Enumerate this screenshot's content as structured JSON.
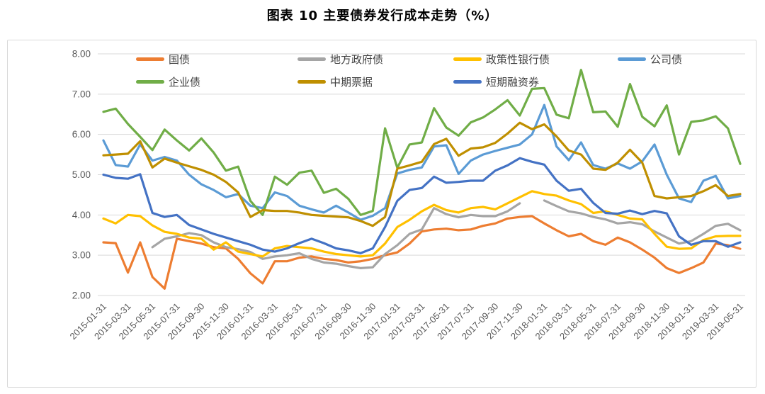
{
  "title": "图表 10 主要债券发行成本走势（%）",
  "colors": {
    "gridline": "#d9d9d9",
    "frame_border": "#d9d9d9",
    "axis_text": "#595959",
    "legend_text": "#404040",
    "title_text": "#000000"
  },
  "chart_data": {
    "type": "line",
    "title": "图表 10 主要债券发行成本走势（%）",
    "xlabel": "",
    "ylabel": "",
    "ylim": [
      2,
      8
    ],
    "y_tick_step": 1,
    "y_tick_decimals": 2,
    "x_tick_every": 2,
    "grid": true,
    "legend_position": "top-inside",
    "x": [
      "2015-01-31",
      "2015-02-28",
      "2015-03-31",
      "2015-04-30",
      "2015-05-31",
      "2015-06-30",
      "2015-07-31",
      "2015-08-31",
      "2015-09-30",
      "2015-10-31",
      "2015-11-30",
      "2015-12-31",
      "2016-01-31",
      "2016-02-29",
      "2016-03-31",
      "2016-04-30",
      "2016-05-31",
      "2016-06-30",
      "2016-07-31",
      "2016-08-31",
      "2016-09-30",
      "2016-10-31",
      "2016-11-30",
      "2016-12-31",
      "2017-01-31",
      "2017-02-28",
      "2017-03-31",
      "2017-04-30",
      "2017-05-31",
      "2017-06-30",
      "2017-07-31",
      "2017-08-31",
      "2017-09-30",
      "2017-10-31",
      "2017-11-30",
      "2017-12-31",
      "2018-01-31",
      "2018-02-28",
      "2018-03-31",
      "2018-04-30",
      "2018-05-31",
      "2018-06-30",
      "2018-07-31",
      "2018-08-31",
      "2018-09-30",
      "2018-10-31",
      "2018-11-30",
      "2018-12-31",
      "2019-01-31",
      "2019-02-28",
      "2019-03-31",
      "2019-04-30",
      "2019-05-31"
    ],
    "series": [
      {
        "id": "treasury-bonds",
        "name": "国债",
        "color": "#ED7D31",
        "values": [
          3.32,
          3.3,
          2.57,
          3.32,
          2.46,
          2.17,
          3.41,
          3.35,
          3.29,
          3.2,
          3.17,
          2.91,
          2.55,
          2.3,
          2.85,
          2.85,
          2.94,
          2.97,
          2.91,
          2.88,
          2.82,
          2.85,
          2.91,
          3.0,
          3.07,
          3.29,
          3.59,
          3.64,
          3.66,
          3.62,
          3.64,
          3.73,
          3.79,
          3.91,
          3.95,
          3.97,
          3.79,
          3.62,
          3.47,
          3.53,
          3.35,
          3.26,
          3.44,
          3.32,
          3.14,
          2.94,
          2.68,
          2.56,
          2.68,
          2.82,
          3.29,
          3.25,
          3.16
        ]
      },
      {
        "id": "local-government-bonds",
        "name": "地方政府债",
        "color": "#A5A5A5",
        "values": [
          null,
          null,
          null,
          null,
          3.2,
          3.41,
          3.47,
          3.55,
          3.5,
          3.32,
          3.2,
          3.15,
          3.08,
          2.91,
          2.97,
          3.0,
          3.05,
          2.91,
          2.82,
          2.79,
          2.73,
          2.68,
          2.7,
          3.03,
          3.25,
          3.53,
          3.64,
          4.17,
          4.02,
          3.94,
          4.0,
          3.97,
          3.97,
          4.09,
          4.29,
          null,
          4.36,
          4.22,
          4.09,
          4.04,
          3.95,
          3.89,
          3.79,
          3.82,
          3.77,
          3.59,
          3.44,
          3.29,
          3.35,
          3.53,
          3.73,
          3.78,
          3.62
        ]
      },
      {
        "id": "policy-bank-bonds",
        "name": "政策性银行债",
        "color": "#FFC000",
        "values": [
          3.91,
          3.79,
          4.0,
          3.97,
          3.74,
          3.58,
          3.53,
          3.44,
          3.41,
          3.14,
          3.32,
          3.09,
          3.03,
          2.97,
          3.17,
          3.23,
          3.2,
          3.17,
          3.09,
          3.03,
          3.0,
          2.97,
          3.0,
          3.29,
          3.7,
          3.88,
          4.09,
          4.25,
          4.12,
          4.06,
          4.17,
          4.2,
          4.14,
          4.29,
          4.44,
          4.59,
          4.52,
          4.48,
          4.36,
          4.27,
          4.05,
          4.09,
          4.0,
          3.91,
          3.89,
          3.53,
          3.21,
          3.16,
          3.17,
          3.38,
          3.47,
          3.48,
          3.48
        ]
      },
      {
        "id": "corporate-bonds",
        "name": "公司债",
        "color": "#5B9BD5",
        "values": [
          5.85,
          5.24,
          5.2,
          5.75,
          5.35,
          5.44,
          5.35,
          5.0,
          4.76,
          4.62,
          4.44,
          4.52,
          4.23,
          4.17,
          4.56,
          4.47,
          4.23,
          4.14,
          4.06,
          4.23,
          4.06,
          3.88,
          3.98,
          4.17,
          5.03,
          5.12,
          5.18,
          5.7,
          5.73,
          5.02,
          5.35,
          5.5,
          5.59,
          5.67,
          5.75,
          6.0,
          6.73,
          5.7,
          5.36,
          5.8,
          5.24,
          5.15,
          5.28,
          5.15,
          5.33,
          5.75,
          5.0,
          4.41,
          4.32,
          4.85,
          4.97,
          4.41,
          4.47
        ]
      },
      {
        "id": "enterprise-bonds",
        "name": "企业债",
        "color": "#70AD47",
        "values": [
          6.56,
          6.64,
          6.26,
          5.94,
          5.61,
          6.12,
          5.85,
          5.6,
          5.9,
          5.55,
          5.1,
          5.2,
          4.35,
          4.0,
          4.95,
          4.75,
          5.05,
          5.1,
          4.55,
          4.65,
          4.4,
          4.0,
          4.1,
          6.15,
          5.17,
          5.75,
          5.8,
          6.65,
          6.17,
          5.97,
          6.3,
          6.42,
          6.62,
          6.85,
          6.47,
          7.13,
          7.15,
          6.49,
          6.4,
          7.6,
          6.55,
          6.57,
          6.19,
          7.25,
          6.44,
          6.2,
          6.72,
          5.5,
          6.31,
          6.35,
          6.45,
          6.15,
          5.27
        ]
      },
      {
        "id": "medium-term-notes",
        "name": "中期票据",
        "color": "#BF8F00",
        "values": [
          5.48,
          5.5,
          5.52,
          5.83,
          5.18,
          5.4,
          5.3,
          5.21,
          5.12,
          5.0,
          4.82,
          4.56,
          3.95,
          4.12,
          4.1,
          4.1,
          4.06,
          4.0,
          3.98,
          3.96,
          3.94,
          3.85,
          3.73,
          3.95,
          5.15,
          5.23,
          5.32,
          5.76,
          5.89,
          5.47,
          5.65,
          5.68,
          5.79,
          6.02,
          6.29,
          6.13,
          6.25,
          5.95,
          5.6,
          5.5,
          5.15,
          5.12,
          5.3,
          5.62,
          5.3,
          4.47,
          4.41,
          4.44,
          4.47,
          4.59,
          4.74,
          4.47,
          4.52
        ]
      },
      {
        "id": "short-term-financing-bills",
        "name": "短期融资券",
        "color": "#4472C4",
        "values": [
          5.0,
          4.92,
          4.9,
          5.01,
          4.05,
          3.95,
          4.0,
          3.75,
          3.64,
          3.53,
          3.44,
          3.35,
          3.26,
          3.14,
          3.09,
          3.17,
          3.3,
          3.41,
          3.3,
          3.17,
          3.12,
          3.05,
          3.17,
          3.7,
          4.35,
          4.62,
          4.67,
          4.95,
          4.8,
          4.82,
          4.85,
          4.85,
          5.1,
          5.23,
          5.41,
          5.32,
          5.25,
          4.85,
          4.6,
          4.65,
          4.3,
          4.05,
          4.03,
          4.11,
          4.02,
          4.1,
          4.04,
          3.47,
          3.26,
          3.35,
          3.35,
          3.21,
          3.32
        ]
      }
    ]
  }
}
